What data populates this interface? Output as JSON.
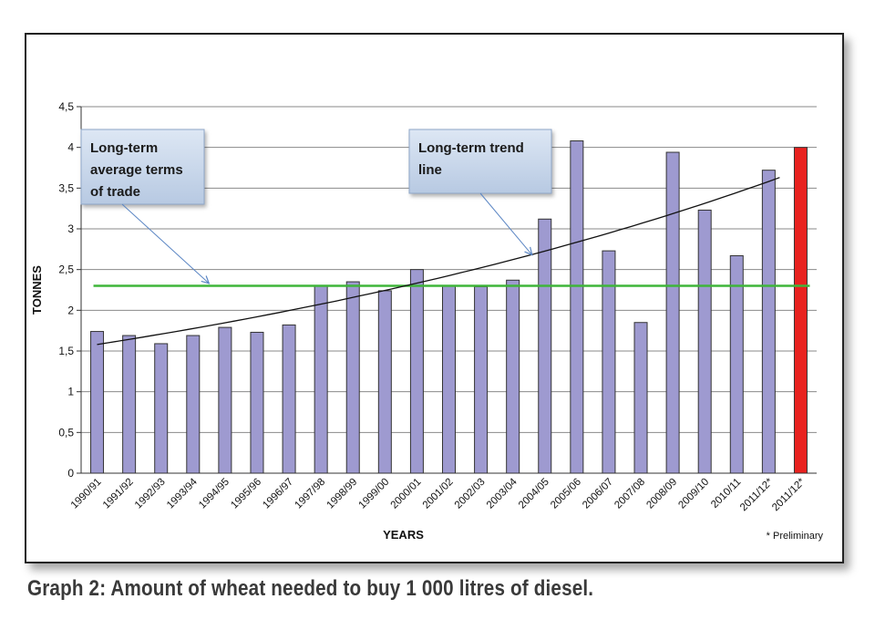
{
  "caption": "Graph 2: Amount of wheat needed to buy 1 000 litres of diesel.",
  "chart_data": {
    "type": "bar",
    "xlabel": "YEARS",
    "ylabel": "TONNES",
    "ylim": [
      0,
      4.5
    ],
    "yticks": [
      "0",
      "0,5",
      "1",
      "1,5",
      "2",
      "2,5",
      "3",
      "3,5",
      "4",
      "4,5"
    ],
    "grid": true,
    "categories": [
      "1990/91",
      "1991/92",
      "1992/93",
      "1993/94",
      "1994/95",
      "1995/96",
      "1996/97",
      "1997/98",
      "1998/99",
      "1999/00",
      "2000/01",
      "2001/02",
      "2002/03",
      "2003/04",
      "2004/05",
      "2005/06",
      "2006/07",
      "2007/08",
      "2008/09",
      "2009/10",
      "2010/11",
      "2011/12*",
      "2011/12*"
    ],
    "values": [
      1.74,
      1.69,
      1.59,
      1.69,
      1.79,
      1.73,
      1.82,
      2.3,
      2.35,
      2.24,
      2.5,
      2.3,
      2.29,
      2.37,
      3.12,
      4.08,
      2.73,
      1.85,
      3.94,
      3.23,
      2.67,
      3.72,
      4.0
    ],
    "bar_colors": [
      "#9e9ad0",
      "#9e9ad0",
      "#9e9ad0",
      "#9e9ad0",
      "#9e9ad0",
      "#9e9ad0",
      "#9e9ad0",
      "#9e9ad0",
      "#9e9ad0",
      "#9e9ad0",
      "#9e9ad0",
      "#9e9ad0",
      "#9e9ad0",
      "#9e9ad0",
      "#9e9ad0",
      "#9e9ad0",
      "#9e9ad0",
      "#9e9ad0",
      "#9e9ad0",
      "#9e9ad0",
      "#9e9ad0",
      "#9e9ad0",
      "#e8221f"
    ],
    "average_line": {
      "value": 2.3,
      "color": "#3fb53a"
    },
    "trend_line": {
      "start": 1.58,
      "end": 3.63,
      "color": "#111111"
    },
    "annotations": [
      {
        "id": "average",
        "lines": [
          "Long-term",
          "average terms",
          "of trade"
        ],
        "arrow_to": {
          "category_index": 3.5,
          "value": 2.33
        }
      },
      {
        "id": "trend",
        "lines": [
          "Long-term trend",
          "line"
        ],
        "arrow_to": {
          "category_index": 13.6,
          "value": 2.68
        }
      }
    ],
    "footnote": "* Preliminary"
  }
}
